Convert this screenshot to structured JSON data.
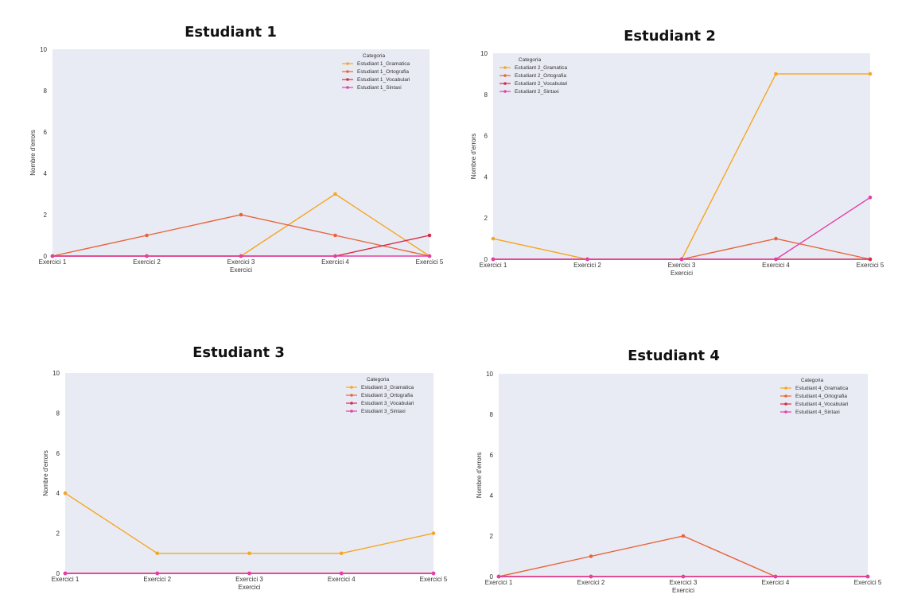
{
  "chart_data": [
    {
      "type": "line",
      "title": "Estudiant 1",
      "xlabel": "Exercici",
      "ylabel": "Nombre d'errors",
      "categories": [
        "Exercici 1",
        "Exercici 2",
        "Exercici 3",
        "Exercici 4",
        "Exercici 5"
      ],
      "ylim": [
        0,
        10
      ],
      "yticks": [
        0,
        2,
        4,
        6,
        8,
        10
      ],
      "grid": false,
      "legend_title": "Categoria",
      "legend_position": "top-right",
      "series": [
        {
          "name": "Estudiant 1_Gramatica",
          "color": "#f5a623",
          "values": [
            0,
            0,
            0,
            3,
            0
          ]
        },
        {
          "name": "Estudiant 1_Ortografia",
          "color": "#e8643c",
          "values": [
            0,
            1,
            2,
            1,
            0
          ]
        },
        {
          "name": "Estudiant 1_Vocabulari",
          "color": "#d62a4a",
          "values": [
            0,
            0,
            0,
            0,
            1
          ]
        },
        {
          "name": "Estudiant 1_Sintaxi",
          "color": "#e23fa8",
          "values": [
            0,
            0,
            0,
            0,
            0
          ]
        }
      ]
    },
    {
      "type": "line",
      "title": "Estudiant 2",
      "xlabel": "Exercici",
      "ylabel": "Nombre d'errors",
      "categories": [
        "Exercici 1",
        "Exercici 2",
        "Exercici 3",
        "Exercici 4",
        "Exercici 5"
      ],
      "ylim": [
        0,
        10
      ],
      "yticks": [
        0,
        2,
        4,
        6,
        8,
        10
      ],
      "grid": false,
      "legend_title": "Categoria",
      "legend_position": "top-left",
      "series": [
        {
          "name": "Estudiant 2_Gramatica",
          "color": "#f5a623",
          "values": [
            1,
            0,
            0,
            9,
            9
          ]
        },
        {
          "name": "Estudiant 2_Ortografia",
          "color": "#e8643c",
          "values": [
            0,
            0,
            0,
            1,
            0
          ]
        },
        {
          "name": "Estudiant 2_Vocabulari",
          "color": "#d62a4a",
          "values": [
            0,
            0,
            0,
            0,
            0
          ]
        },
        {
          "name": "Estudiant 2_Sintaxi",
          "color": "#e23fa8",
          "values": [
            0,
            0,
            0,
            0,
            3
          ]
        }
      ]
    },
    {
      "type": "line",
      "title": "Estudiant 3",
      "xlabel": "Exercici",
      "ylabel": "Nombre d'errors",
      "categories": [
        "Exercici 1",
        "Exercici 2",
        "Exercici 3",
        "Exercici 4",
        "Exercici 5"
      ],
      "ylim": [
        0,
        10
      ],
      "yticks": [
        0,
        2,
        4,
        6,
        8,
        10
      ],
      "grid": false,
      "legend_title": "Categoria",
      "legend_position": "top-right",
      "series": [
        {
          "name": "Estudiant 3_Gramatica",
          "color": "#f5a623",
          "values": [
            4,
            1,
            1,
            1,
            2
          ]
        },
        {
          "name": "Estudiant 3_Ortografia",
          "color": "#e8643c",
          "values": [
            0,
            0,
            0,
            0,
            0
          ]
        },
        {
          "name": "Estudiant 3_Vocabulari",
          "color": "#d62a4a",
          "values": [
            0,
            0,
            0,
            0,
            0
          ]
        },
        {
          "name": "Estudiant 3_Sintaxi",
          "color": "#e23fa8",
          "values": [
            0,
            0,
            0,
            0,
            0
          ]
        }
      ]
    },
    {
      "type": "line",
      "title": "Estudiant 4",
      "xlabel": "Exercici",
      "ylabel": "Nombre d'errors",
      "categories": [
        "Exercici 1",
        "Exercici 2",
        "Exercici 3",
        "Exercici 4",
        "Exercici 5"
      ],
      "ylim": [
        0,
        10
      ],
      "yticks": [
        0,
        2,
        4,
        6,
        8,
        10
      ],
      "grid": false,
      "legend_title": "Categoria",
      "legend_position": "top-right",
      "series": [
        {
          "name": "Estudiant 4_Gramatica",
          "color": "#f5a623",
          "values": [
            0,
            0,
            0,
            0,
            0
          ]
        },
        {
          "name": "Estudiant 4_Ortografia",
          "color": "#e8643c",
          "values": [
            0,
            1,
            2,
            0,
            0
          ]
        },
        {
          "name": "Estudiant 4_Vocabulari",
          "color": "#d62a4a",
          "values": [
            0,
            0,
            0,
            0,
            0
          ]
        },
        {
          "name": "Estudiant 4_Sintaxi",
          "color": "#e23fa8",
          "values": [
            0,
            0,
            0,
            0,
            0
          ]
        }
      ]
    }
  ]
}
